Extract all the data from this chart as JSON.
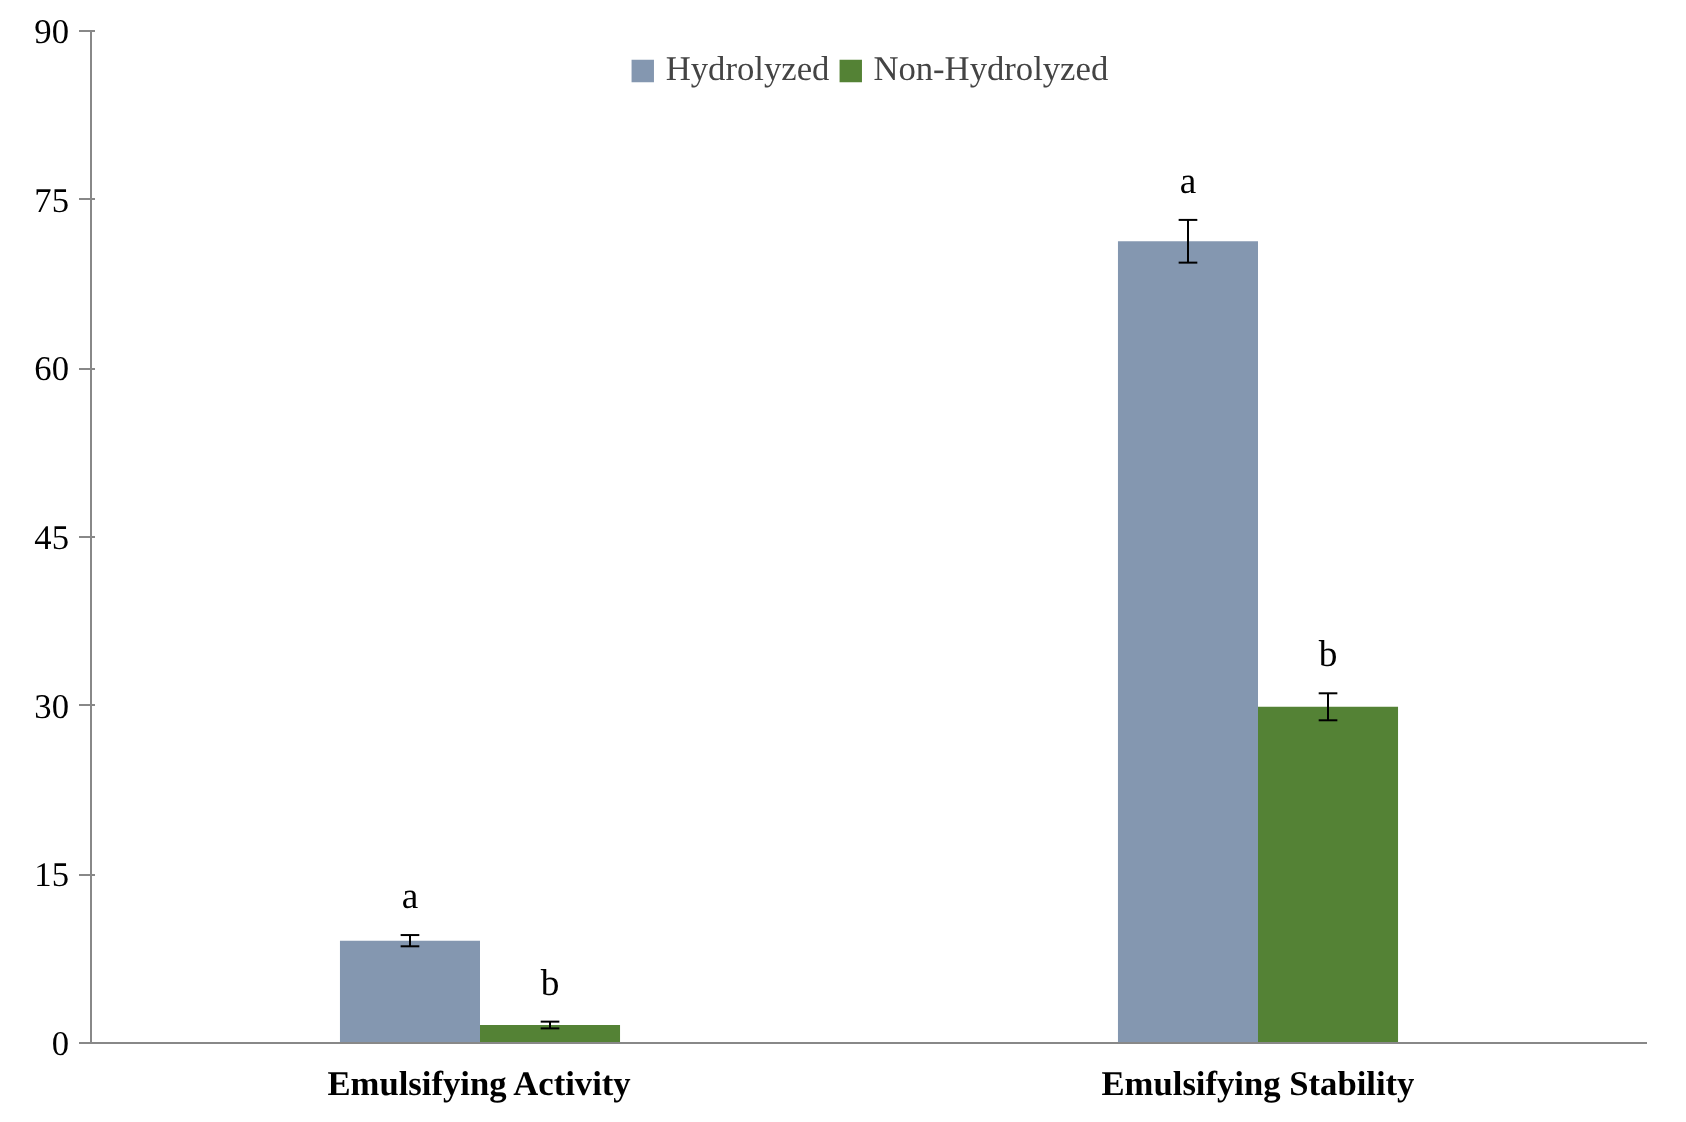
{
  "chart_data": {
    "type": "bar",
    "categories": [
      "Emulsifying Activity",
      "Emulsifying Stability"
    ],
    "series": [
      {
        "name": "Hydrolyzed",
        "color": "#8497b0",
        "values": [
          9.1,
          71.3
        ],
        "errors": [
          0.5,
          1.9
        ],
        "value_labels": [
          "a",
          "a"
        ]
      },
      {
        "name": "Non-Hydrolyzed",
        "color": "#548235",
        "values": [
          1.6,
          29.9
        ],
        "errors": [
          0.3,
          1.2
        ],
        "value_labels": [
          "b",
          "b"
        ]
      }
    ],
    "ylim": [
      0,
      90
    ],
    "yticks": [
      0,
      15,
      30,
      45,
      60,
      75,
      90
    ],
    "grid": false,
    "legend": "top"
  }
}
